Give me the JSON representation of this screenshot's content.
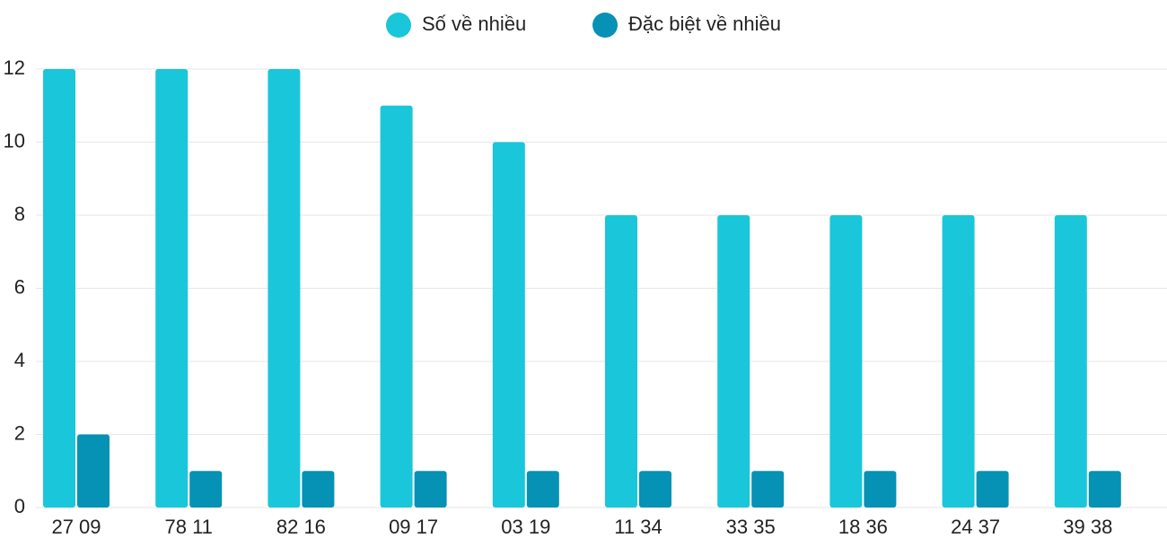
{
  "chart_data": {
    "type": "bar",
    "categories": [
      "27 09",
      "78 11",
      "82 16",
      "09 17",
      "03 19",
      "11 34",
      "33 35",
      "18 36",
      "24 37",
      "39 38"
    ],
    "series": [
      {
        "name": "Số về nhiều",
        "color": "#1ac6d9",
        "values": [
          12,
          12,
          12,
          11,
          10,
          8,
          8,
          8,
          8,
          8
        ]
      },
      {
        "name": "Đặc biệt về nhiều",
        "color": "#0592b5",
        "values": [
          2,
          1,
          1,
          1,
          1,
          1,
          1,
          1,
          1,
          1
        ]
      }
    ],
    "ylim": [
      0,
      12
    ],
    "yticks": [
      0,
      2,
      4,
      6,
      8,
      10,
      12
    ],
    "grid": true,
    "legend": "top"
  }
}
